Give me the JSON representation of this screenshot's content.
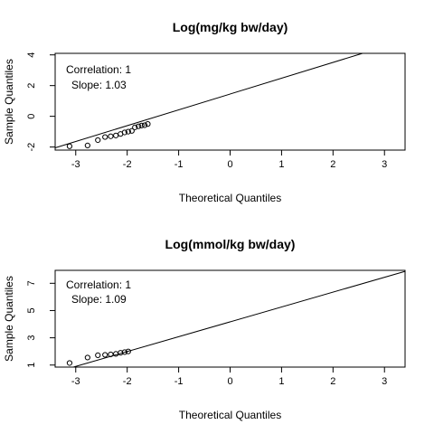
{
  "chart_data": [
    {
      "type": "scatter",
      "subtype": "qq-plot",
      "title": "Log(mg/kg bw/day)",
      "xlabel": "Theoretical Quantiles",
      "ylabel": "Sample Quantiles",
      "xlim": [
        -3.4,
        3.4
      ],
      "ylim": [
        -2.2,
        4.1
      ],
      "xticks": [
        -3,
        -2,
        -1,
        0,
        1,
        2,
        3
      ],
      "yticks": [
        -2,
        0,
        2,
        4
      ],
      "annotations": [
        "Correlation: 1",
        "Slope: 1.03"
      ],
      "reference_line": {
        "slope": 1.03,
        "intercept": 1.45
      },
      "quantiles": [
        {
          "x": -3.12,
          "y": -1.95
        },
        {
          "x": -2.77,
          "y": -1.9
        },
        {
          "x": -2.57,
          "y": -1.55
        },
        {
          "x": -2.43,
          "y": -1.35
        },
        {
          "x": -2.32,
          "y": -1.3
        },
        {
          "x": -2.22,
          "y": -1.25
        },
        {
          "x": -2.13,
          "y": -1.15
        },
        {
          "x": -2.05,
          "y": -1.05
        },
        {
          "x": -1.98,
          "y": -1.0
        },
        {
          "x": -1.91,
          "y": -0.95
        },
        {
          "x": -1.85,
          "y": -0.72
        },
        {
          "x": -1.78,
          "y": -0.65
        },
        {
          "x": -1.72,
          "y": -0.6
        },
        {
          "x": -1.66,
          "y": -0.58
        },
        {
          "x": -1.6,
          "y": -0.5
        }
      ],
      "grid": false
    },
    {
      "type": "scatter",
      "subtype": "qq-plot",
      "title": "Log(mmol/kg bw/day)",
      "xlabel": "Theoretical Quantiles",
      "ylabel": "Sample Quantiles",
      "xlim": [
        -3.4,
        3.4
      ],
      "ylim": [
        0.85,
        7.95
      ],
      "xticks": [
        -3,
        -2,
        -1,
        0,
        1,
        2,
        3
      ],
      "yticks": [
        1,
        3,
        5,
        7
      ],
      "annotations": [
        "Correlation: 1",
        "Slope: 1.09"
      ],
      "reference_line": {
        "slope": 1.09,
        "intercept": 4.17
      },
      "quantiles": [
        {
          "x": -3.12,
          "y": 1.15
        },
        {
          "x": -2.77,
          "y": 1.55
        },
        {
          "x": -2.57,
          "y": 1.72
        },
        {
          "x": -2.43,
          "y": 1.75
        },
        {
          "x": -2.32,
          "y": 1.78
        },
        {
          "x": -2.22,
          "y": 1.82
        },
        {
          "x": -2.13,
          "y": 1.9
        },
        {
          "x": -2.05,
          "y": 1.95
        },
        {
          "x": -1.98,
          "y": 2.0
        }
      ],
      "grid": false
    }
  ]
}
